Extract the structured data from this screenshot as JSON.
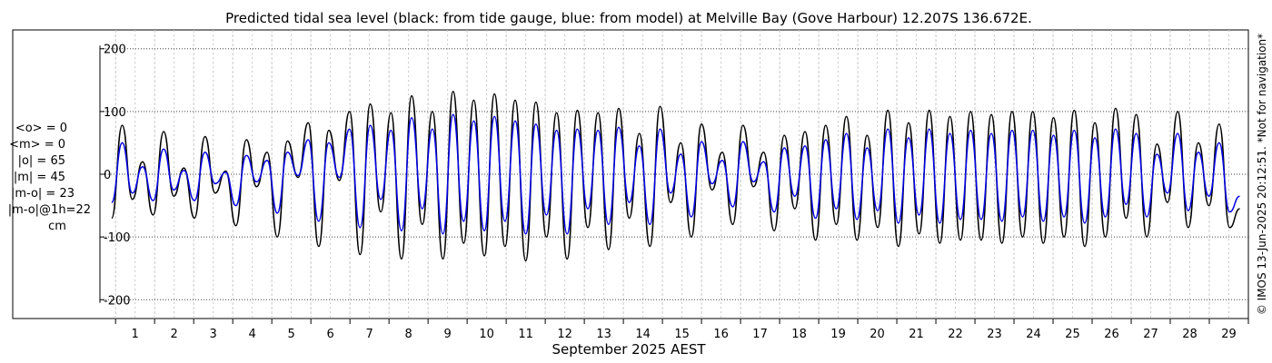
{
  "chart_data": {
    "type": "line",
    "title": "Predicted tidal sea level (black: from tide gauge, blue: from model) at Melville Bay (Gove Harbour) 12.207S 136.672E.",
    "xlabel": "September 2025 AEST",
    "ylabel": "",
    "xlim": [
      0.6,
      30.0
    ],
    "ylim": [
      -230,
      230
    ],
    "y_ticks": [
      200,
      100,
      0,
      -100,
      -200
    ],
    "x_ticks": [
      1,
      2,
      3,
      4,
      5,
      6,
      7,
      8,
      9,
      10,
      11,
      12,
      13,
      14,
      15,
      16,
      17,
      18,
      19,
      20,
      21,
      22,
      23,
      24,
      25,
      26,
      27,
      28,
      29
    ],
    "grid": true,
    "series": [
      {
        "name": "tide gauge",
        "color": "#000000",
        "x": [
          0.9,
          1.17,
          1.43,
          1.69,
          1.96,
          2.23,
          2.49,
          2.75,
          3.02,
          3.29,
          3.55,
          3.82,
          4.08,
          4.35,
          4.61,
          4.88,
          5.14,
          5.4,
          5.67,
          5.93,
          6.2,
          6.46,
          6.73,
          6.99,
          7.26,
          7.52,
          7.79,
          8.05,
          8.32,
          8.58,
          8.85,
          9.11,
          9.38,
          9.64,
          9.91,
          10.17,
          10.44,
          10.7,
          10.97,
          11.23,
          11.5,
          11.76,
          12.03,
          12.29,
          12.56,
          12.82,
          13.09,
          13.35,
          13.62,
          13.88,
          14.15,
          14.41,
          14.68,
          14.94,
          15.21,
          15.47,
          15.74,
          16.0,
          16.27,
          16.53,
          16.8,
          17.06,
          17.33,
          17.59,
          17.86,
          18.12,
          18.39,
          18.65,
          18.92,
          19.18,
          19.45,
          19.71,
          19.98,
          20.24,
          20.51,
          20.77,
          21.04,
          21.3,
          21.57,
          21.83,
          22.1,
          22.36,
          22.63,
          22.89,
          23.16,
          23.42,
          23.69,
          23.95,
          24.22,
          24.48,
          24.75,
          25.01,
          25.28,
          25.54,
          25.81,
          26.07,
          26.34,
          26.6,
          26.87,
          27.13,
          27.4,
          27.66,
          27.93,
          28.19,
          28.46,
          28.72,
          28.99,
          29.25,
          29.52,
          29.78
        ],
        "y": [
          -70,
          78,
          -40,
          20,
          -65,
          68,
          -35,
          10,
          -70,
          60,
          -30,
          5,
          -82,
          55,
          -20,
          35,
          -100,
          53,
          -5,
          82,
          -115,
          70,
          -10,
          100,
          -128,
          112,
          -60,
          98,
          -135,
          125,
          -80,
          100,
          -135,
          132,
          -110,
          118,
          -130,
          128,
          -115,
          118,
          -138,
          115,
          -100,
          98,
          -135,
          102,
          -85,
          98,
          -120,
          105,
          -70,
          65,
          -115,
          108,
          -45,
          50,
          -100,
          80,
          -25,
          35,
          -80,
          78,
          -20,
          35,
          -90,
          62,
          -55,
          68,
          -105,
          78,
          -80,
          92,
          -105,
          62,
          -85,
          102,
          -115,
          82,
          -95,
          102,
          -110,
          92,
          -105,
          100,
          -105,
          95,
          -110,
          100,
          -100,
          100,
          -110,
          90,
          -100,
          102,
          -115,
          82,
          -100,
          105,
          -70,
          95,
          -100,
          48,
          -45,
          100,
          -85,
          50,
          -50,
          80,
          -85,
          -55
        ]
      },
      {
        "name": "model",
        "color": "#0000e6",
        "x": [
          0.9,
          1.17,
          1.43,
          1.69,
          1.96,
          2.23,
          2.49,
          2.75,
          3.02,
          3.29,
          3.55,
          3.82,
          4.08,
          4.35,
          4.61,
          4.88,
          5.14,
          5.4,
          5.67,
          5.93,
          6.2,
          6.46,
          6.73,
          6.99,
          7.26,
          7.52,
          7.79,
          8.05,
          8.32,
          8.58,
          8.85,
          9.11,
          9.38,
          9.64,
          9.91,
          10.17,
          10.44,
          10.7,
          10.97,
          11.23,
          11.5,
          11.76,
          12.03,
          12.29,
          12.56,
          12.82,
          13.09,
          13.35,
          13.62,
          13.88,
          14.15,
          14.41,
          14.68,
          14.94,
          15.21,
          15.47,
          15.74,
          16.0,
          16.27,
          16.53,
          16.8,
          17.06,
          17.33,
          17.59,
          17.86,
          18.12,
          18.39,
          18.65,
          18.92,
          19.18,
          19.45,
          19.71,
          19.98,
          20.24,
          20.51,
          20.77,
          21.04,
          21.3,
          21.57,
          21.83,
          22.1,
          22.36,
          22.63,
          22.89,
          23.16,
          23.42,
          23.69,
          23.95,
          24.22,
          24.48,
          24.75,
          25.01,
          25.28,
          25.54,
          25.81,
          26.07,
          26.34,
          26.6,
          26.87,
          27.13,
          27.4,
          27.66,
          27.93,
          28.19,
          28.46,
          28.72,
          28.99,
          29.25,
          29.52,
          29.78
        ],
        "y": [
          -45,
          50,
          -30,
          12,
          -42,
          40,
          -25,
          6,
          -42,
          35,
          -15,
          3,
          -50,
          30,
          -12,
          22,
          -62,
          35,
          -2,
          55,
          -75,
          50,
          -5,
          72,
          -85,
          78,
          -40,
          70,
          -90,
          90,
          -55,
          72,
          -95,
          95,
          -75,
          85,
          -90,
          92,
          -75,
          85,
          -95,
          80,
          -65,
          70,
          -95,
          72,
          -55,
          70,
          -80,
          75,
          -45,
          45,
          -80,
          72,
          -30,
          32,
          -68,
          52,
          -15,
          22,
          -52,
          52,
          -12,
          20,
          -60,
          42,
          -35,
          45,
          -70,
          55,
          -55,
          65,
          -72,
          42,
          -58,
          72,
          -78,
          58,
          -65,
          72,
          -78,
          65,
          -72,
          70,
          -72,
          65,
          -75,
          70,
          -68,
          70,
          -75,
          62,
          -68,
          70,
          -78,
          58,
          -68,
          72,
          -48,
          65,
          -68,
          32,
          -30,
          65,
          -58,
          35,
          -35,
          50,
          -60,
          -35
        ]
      }
    ]
  },
  "stats": {
    "mean_obs": "<o> = 0",
    "mean_model": "<m> = 0",
    "abs_obs": "|o| = 65",
    "abs_model": "|m| = 45",
    "abs_diff": "|m-o| = 23",
    "abs_diff_1h": "|m-o|@1h=22",
    "units": "cm"
  },
  "credit": "© IMOS 13-Jun-2025 20:12:51.  *Not for navigation*"
}
